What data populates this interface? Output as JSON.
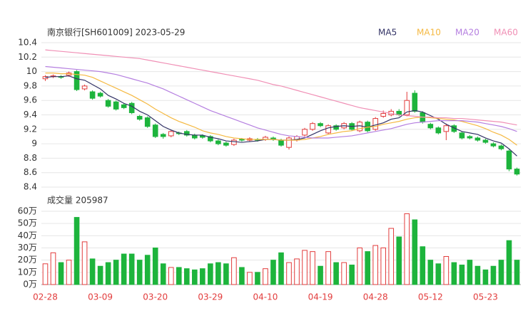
{
  "chart_data": {
    "type": "candlestick",
    "title": "南京银行[SH601009] 2023-05-29",
    "categories": [
      "02-28",
      null,
      null,
      null,
      null,
      null,
      null,
      "03-09",
      null,
      null,
      null,
      null,
      null,
      null,
      "03-20",
      null,
      null,
      null,
      null,
      null,
      null,
      "03-29",
      null,
      null,
      null,
      null,
      null,
      null,
      "04-10",
      null,
      null,
      null,
      null,
      null,
      null,
      "04-19",
      null,
      null,
      null,
      null,
      null,
      null,
      "04-28",
      null,
      null,
      null,
      null,
      null,
      null,
      "05-12",
      null,
      null,
      null,
      null,
      null,
      null,
      "05-23",
      null,
      null,
      null,
      null
    ],
    "open": [
      9.9,
      9.93,
      9.93,
      9.95,
      10.0,
      9.76,
      9.72,
      9.7,
      9.6,
      9.58,
      9.54,
      9.56,
      9.38,
      9.36,
      9.26,
      9.13,
      9.11,
      9.15,
      9.17,
      9.12,
      9.11,
      9.1,
      9.04,
      9.01,
      8.99,
      9.06,
      9.05,
      9.06,
      9.06,
      9.08,
      9.05,
      8.95,
      9.05,
      9.12,
      9.2,
      9.28,
      9.15,
      9.25,
      9.22,
      9.28,
      9.18,
      9.3,
      9.2,
      9.38,
      9.4,
      9.45,
      9.4,
      9.7,
      9.43,
      9.27,
      9.22,
      9.17,
      9.25,
      9.15,
      9.1,
      9.08,
      9.05,
      9.0,
      8.97,
      8.9,
      8.65
    ],
    "high": [
      9.95,
      9.96,
      9.95,
      10.0,
      10.02,
      9.82,
      9.74,
      9.72,
      9.62,
      9.6,
      9.56,
      9.58,
      9.4,
      9.38,
      9.28,
      9.15,
      9.19,
      9.17,
      9.19,
      9.14,
      9.13,
      9.12,
      9.06,
      9.03,
      9.07,
      9.08,
      9.09,
      9.08,
      9.11,
      9.1,
      9.07,
      9.1,
      9.12,
      9.22,
      9.3,
      9.3,
      9.27,
      9.27,
      9.3,
      9.3,
      9.32,
      9.32,
      9.37,
      9.46,
      9.48,
      9.48,
      9.72,
      9.74,
      9.45,
      9.29,
      9.24,
      9.28,
      9.27,
      9.17,
      9.12,
      9.1,
      9.07,
      9.02,
      8.99,
      8.92,
      8.67
    ],
    "low": [
      9.87,
      9.91,
      9.9,
      9.93,
      9.73,
      9.74,
      9.61,
      9.64,
      9.5,
      9.46,
      9.48,
      9.41,
      9.32,
      9.22,
      9.08,
      9.07,
      9.09,
      9.12,
      9.1,
      9.06,
      9.07,
      9.02,
      8.98,
      8.96,
      8.97,
      9.03,
      9.03,
      9.03,
      9.04,
      9.04,
      8.96,
      8.92,
      9.03,
      9.1,
      9.18,
      9.23,
      9.13,
      9.18,
      9.2,
      9.18,
      9.16,
      9.16,
      9.18,
      9.36,
      9.38,
      9.38,
      9.38,
      9.43,
      9.28,
      9.2,
      9.13,
      9.05,
      9.15,
      9.06,
      9.06,
      9.03,
      9.0,
      8.95,
      8.91,
      8.62,
      8.56
    ],
    "close": [
      9.93,
      9.94,
      9.92,
      9.98,
      9.75,
      9.8,
      9.63,
      9.66,
      9.52,
      9.48,
      9.5,
      9.43,
      9.34,
      9.24,
      9.1,
      9.1,
      9.17,
      9.14,
      9.12,
      9.08,
      9.09,
      9.04,
      9.0,
      8.98,
      9.05,
      9.05,
      9.07,
      9.05,
      9.09,
      9.06,
      8.98,
      9.08,
      9.1,
      9.2,
      9.28,
      9.25,
      9.25,
      9.2,
      9.28,
      9.2,
      9.3,
      9.18,
      9.35,
      9.42,
      9.45,
      9.4,
      9.6,
      9.45,
      9.3,
      9.22,
      9.15,
      9.25,
      9.17,
      9.08,
      9.08,
      9.05,
      9.02,
      8.97,
      8.93,
      8.65,
      8.58
    ],
    "up_color": "#e23c3c",
    "down_color": "#1db43c",
    "series": [
      {
        "name": "MA5",
        "color": "#333366",
        "values": [
          9.92,
          9.93,
          9.93,
          9.94,
          9.9,
          9.88,
          9.82,
          9.76,
          9.67,
          9.62,
          9.56,
          9.52,
          9.45,
          9.4,
          9.32,
          9.24,
          9.19,
          9.15,
          9.13,
          9.12,
          9.12,
          9.09,
          9.07,
          9.04,
          9.03,
          9.02,
          9.03,
          9.04,
          9.06,
          9.06,
          9.05,
          9.05,
          9.06,
          9.08,
          9.13,
          9.18,
          9.22,
          9.24,
          9.25,
          9.24,
          9.25,
          9.23,
          9.26,
          9.29,
          9.34,
          9.36,
          9.44,
          9.46,
          9.44,
          9.39,
          9.34,
          9.27,
          9.22,
          9.17,
          9.15,
          9.13,
          9.08,
          9.04,
          9.01,
          8.93,
          8.83
        ]
      },
      {
        "name": "MA10",
        "color": "#f5b942",
        "values": [
          9.98,
          9.98,
          9.97,
          9.97,
          9.96,
          9.95,
          9.92,
          9.87,
          9.82,
          9.77,
          9.72,
          9.67,
          9.61,
          9.55,
          9.48,
          9.42,
          9.36,
          9.31,
          9.27,
          9.23,
          9.18,
          9.15,
          9.13,
          9.1,
          9.08,
          9.07,
          9.06,
          9.06,
          9.06,
          9.06,
          9.05,
          9.05,
          9.05,
          9.06,
          9.08,
          9.1,
          9.13,
          9.15,
          9.17,
          9.18,
          9.21,
          9.23,
          9.24,
          9.27,
          9.29,
          9.31,
          9.34,
          9.36,
          9.37,
          9.36,
          9.35,
          9.34,
          9.33,
          9.31,
          9.28,
          9.25,
          9.21,
          9.16,
          9.12,
          9.06,
          8.98
        ]
      },
      {
        "name": "MA20",
        "color": "#b57fe0",
        "values": [
          10.07,
          10.06,
          10.05,
          10.04,
          10.03,
          10.02,
          10.01,
          10.0,
          9.98,
          9.96,
          9.93,
          9.9,
          9.87,
          9.84,
          9.8,
          9.76,
          9.71,
          9.66,
          9.61,
          9.56,
          9.51,
          9.46,
          9.42,
          9.38,
          9.34,
          9.3,
          9.26,
          9.22,
          9.19,
          9.16,
          9.13,
          9.11,
          9.1,
          9.09,
          9.08,
          9.08,
          9.08,
          9.09,
          9.1,
          9.11,
          9.13,
          9.15,
          9.17,
          9.19,
          9.21,
          9.24,
          9.27,
          9.29,
          9.3,
          9.31,
          9.32,
          9.32,
          9.32,
          9.32,
          9.31,
          9.3,
          9.28,
          9.26,
          9.24,
          9.21,
          9.17
        ]
      },
      {
        "name": "MA60",
        "color": "#f08fb5",
        "values": [
          10.3,
          10.29,
          10.28,
          10.27,
          10.26,
          10.25,
          10.24,
          10.23,
          10.22,
          10.21,
          10.2,
          10.19,
          10.18,
          10.16,
          10.14,
          10.12,
          10.1,
          10.08,
          10.06,
          10.04,
          10.02,
          10.0,
          9.98,
          9.96,
          9.94,
          9.92,
          9.9,
          9.88,
          9.85,
          9.82,
          9.8,
          9.77,
          9.74,
          9.71,
          9.68,
          9.65,
          9.62,
          9.59,
          9.56,
          9.53,
          9.5,
          9.48,
          9.46,
          9.44,
          9.42,
          9.4,
          9.39,
          9.38,
          9.37,
          9.37,
          9.36,
          9.36,
          9.35,
          9.35,
          9.34,
          9.33,
          9.32,
          9.31,
          9.3,
          9.28,
          9.26
        ]
      }
    ],
    "ylim": [
      8.4,
      10.4
    ],
    "yticks": [
      8.4,
      8.6,
      8.8,
      9,
      9.2,
      9.4,
      9.6,
      9.8,
      10,
      10.2,
      10.4
    ],
    "grid": true,
    "volume": {
      "title": "成交量 205987",
      "values": [
        17,
        26,
        18,
        20,
        55,
        35,
        21,
        15,
        18,
        20,
        25,
        25,
        20,
        24,
        30,
        17,
        14,
        14,
        13,
        12,
        13,
        17,
        18,
        17,
        22,
        14,
        10,
        10,
        13,
        20,
        26,
        18,
        21,
        28,
        27,
        15,
        27,
        18,
        18,
        16,
        30,
        27,
        32,
        30,
        46,
        39,
        58,
        53,
        31,
        20,
        17,
        23,
        18,
        16,
        20,
        15,
        12,
        15,
        20,
        36,
        20
      ],
      "ylim": [
        0,
        60
      ],
      "yticks": [
        {
          "value": 0,
          "label": "0万"
        },
        {
          "value": 10,
          "label": "10万"
        },
        {
          "value": 20,
          "label": "20万"
        },
        {
          "value": 30,
          "label": "30万"
        },
        {
          "value": 40,
          "label": "40万"
        },
        {
          "value": 50,
          "label": "50万"
        },
        {
          "value": 60,
          "label": "60万"
        }
      ]
    }
  }
}
